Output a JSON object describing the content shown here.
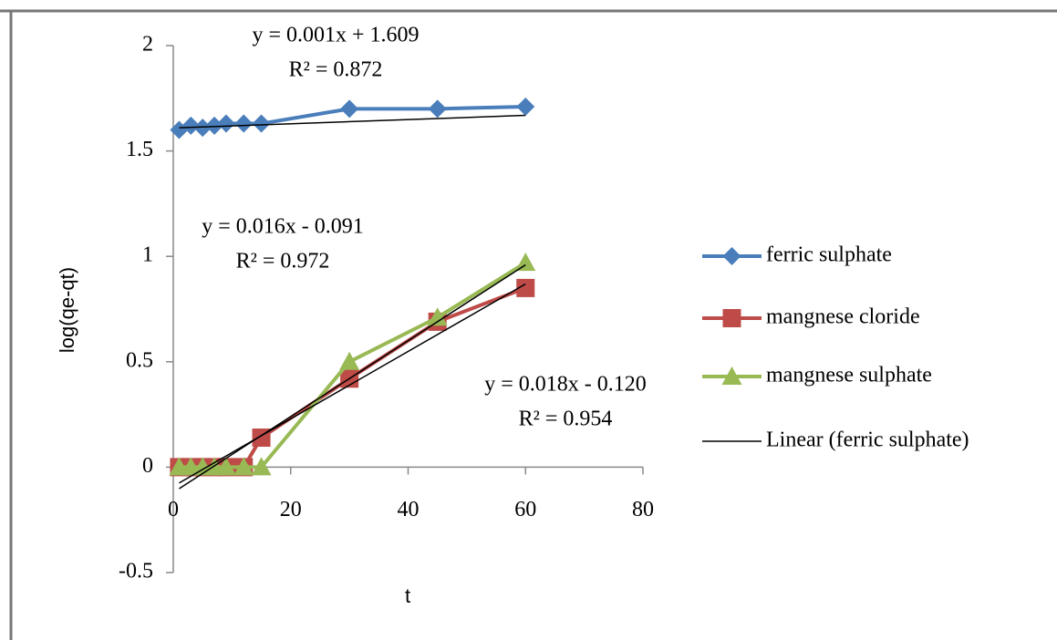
{
  "chart_data": {
    "type": "line",
    "y_label": "log(qe-qt)",
    "x_label": "t",
    "x": [
      1,
      3,
      5,
      7,
      9,
      12,
      15,
      30,
      45,
      60
    ],
    "series": [
      {
        "name": "ferric sulphate",
        "color": "#4a7ebb",
        "marker": "diamond",
        "values": [
          1.6,
          1.62,
          1.61,
          1.62,
          1.63,
          1.63,
          1.63,
          1.7,
          1.7,
          1.71
        ]
      },
      {
        "name": "mangnese cloride",
        "color": "#be4b48",
        "marker": "square",
        "values": [
          0,
          0,
          0,
          0,
          0,
          0,
          0.14,
          0.42,
          0.69,
          0.85
        ]
      },
      {
        "name": "mangnese sulphate",
        "color": "#98b954",
        "marker": "triangle",
        "values": [
          0,
          0,
          0,
          0,
          0,
          0,
          0,
          0.5,
          0.71,
          0.97
        ]
      }
    ],
    "trendlines": [
      {
        "name": "Linear (ferric sulphate)",
        "equation": "y = 0.001x + 1.609",
        "r2": "R² = 0.872",
        "slope": 0.001,
        "intercept": 1.609
      },
      {
        "equation": "y = 0.016x - 0.091",
        "r2": "R² = 0.972",
        "slope": 0.016,
        "intercept": -0.091
      },
      {
        "equation": "y = 0.018x - 0.120",
        "r2": "R² = 0.954",
        "slope": 0.018,
        "intercept": -0.12
      }
    ],
    "xlim": [
      0,
      80
    ],
    "xticks": [
      0,
      20,
      40,
      60,
      80
    ],
    "ylim": [
      -0.5,
      2
    ],
    "yticks": [
      -0.5,
      0,
      0.5,
      1,
      1.5,
      2
    ],
    "legend": "right"
  }
}
